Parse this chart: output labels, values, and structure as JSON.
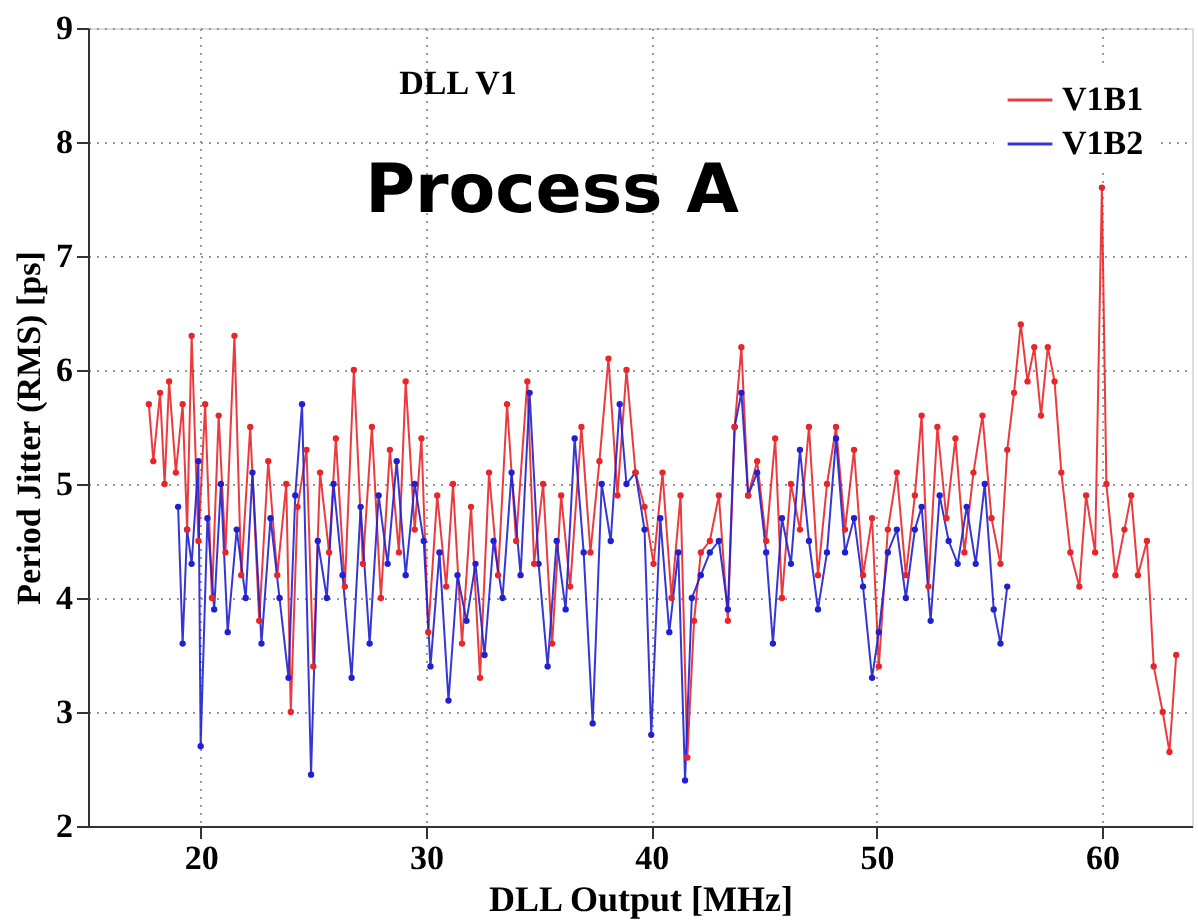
{
  "chart_data": {
    "type": "line",
    "title": "DLL V1",
    "annotations": [
      "Process A"
    ],
    "xlabel": "DLL Output [MHz]",
    "ylabel": "Period Jitter (RMS) [ps]",
    "xlim": [
      15,
      64
    ],
    "xticks": [
      20,
      30,
      40,
      50,
      60
    ],
    "ylim": [
      2,
      9
    ],
    "yticks": [
      2,
      3,
      4,
      5,
      6,
      7,
      8,
      9
    ],
    "grid": true,
    "legend": "top right",
    "marker": "circle",
    "line_style": "solid",
    "series": [
      {
        "name": "V1B1",
        "color": "#e8262a",
        "x": [
          17.7,
          17.9,
          18.2,
          18.4,
          18.6,
          18.9,
          19.2,
          19.4,
          19.6,
          19.9,
          20.2,
          20.5,
          20.8,
          21.1,
          21.5,
          21.8,
          22.2,
          22.6,
          23.0,
          23.4,
          23.8,
          24.0,
          24.3,
          24.7,
          25.0,
          25.3,
          25.7,
          26.0,
          26.4,
          26.8,
          27.2,
          27.6,
          28.0,
          28.4,
          28.8,
          29.1,
          29.5,
          29.8,
          30.1,
          30.5,
          30.9,
          31.2,
          31.6,
          32.0,
          32.4,
          32.8,
          33.2,
          33.6,
          34.0,
          34.5,
          34.8,
          35.2,
          35.6,
          36.0,
          36.4,
          36.9,
          37.3,
          37.7,
          38.1,
          38.5,
          38.9,
          39.3,
          39.7,
          40.1,
          40.5,
          40.9,
          41.3,
          41.6,
          41.9,
          42.2,
          42.6,
          43.0,
          43.4,
          43.7,
          44.0,
          44.3,
          44.7,
          45.1,
          45.5,
          45.8,
          46.2,
          46.6,
          47.0,
          47.4,
          47.8,
          48.2,
          48.6,
          49.0,
          49.4,
          49.8,
          50.1,
          50.5,
          50.9,
          51.3,
          51.7,
          52.0,
          52.3,
          52.7,
          53.1,
          53.5,
          53.9,
          54.3,
          54.7,
          55.1,
          55.5,
          55.8,
          56.1,
          56.4,
          56.7,
          57.0,
          57.3,
          57.6,
          57.9,
          58.2,
          58.6,
          59.0,
          59.3,
          59.7,
          60.0,
          60.2,
          60.6,
          61.0,
          61.3,
          61.6,
          62.0,
          62.3,
          62.7,
          63.0,
          63.3
        ],
        "values": [
          5.7,
          5.2,
          5.8,
          5.0,
          5.9,
          5.1,
          5.7,
          4.6,
          6.3,
          4.5,
          5.7,
          4.0,
          5.6,
          4.4,
          6.3,
          4.2,
          5.5,
          3.8,
          5.2,
          4.2,
          5.0,
          3.0,
          4.8,
          5.3,
          3.4,
          5.1,
          4.4,
          5.4,
          4.1,
          6.0,
          4.3,
          5.5,
          4.0,
          5.3,
          4.4,
          5.9,
          4.6,
          5.4,
          3.7,
          4.9,
          4.1,
          5.0,
          3.6,
          4.8,
          3.3,
          5.1,
          4.2,
          5.7,
          4.5,
          5.9,
          4.3,
          5.0,
          3.6,
          4.9,
          4.1,
          5.5,
          4.4,
          5.2,
          6.1,
          4.9,
          6.0,
          5.1,
          4.8,
          4.3,
          5.1,
          4.0,
          4.9,
          2.6,
          3.8,
          4.4,
          4.5,
          4.9,
          3.8,
          5.5,
          6.2,
          4.9,
          5.2,
          4.5,
          5.4,
          4.0,
          5.0,
          4.6,
          5.5,
          4.2,
          5.0,
          5.5,
          4.6,
          5.3,
          4.2,
          4.7,
          3.4,
          4.6,
          5.1,
          4.2,
          4.9,
          5.6,
          4.1,
          5.5,
          4.7,
          5.4,
          4.4,
          5.1,
          5.6,
          4.7,
          4.3,
          5.3,
          5.8,
          6.4,
          5.9,
          6.2,
          5.6,
          6.2,
          5.9,
          5.1,
          4.4,
          4.1,
          4.9,
          4.4,
          7.6,
          5.0,
          4.2,
          4.6,
          4.9,
          4.2,
          4.5,
          3.4,
          3.0,
          2.65,
          3.5
        ]
      },
      {
        "name": "V1B2",
        "color": "#2020d0",
        "x": [
          19.0,
          19.2,
          19.4,
          19.6,
          19.9,
          20.0,
          20.3,
          20.6,
          20.9,
          21.2,
          21.6,
          22.0,
          22.3,
          22.7,
          23.1,
          23.5,
          23.9,
          24.2,
          24.5,
          24.9,
          25.2,
          25.6,
          25.9,
          26.3,
          26.7,
          27.1,
          27.5,
          27.9,
          28.3,
          28.7,
          29.1,
          29.5,
          29.9,
          30.2,
          30.6,
          31.0,
          31.4,
          31.8,
          32.2,
          32.6,
          33.0,
          33.4,
          33.8,
          34.2,
          34.6,
          35.0,
          35.4,
          35.8,
          36.2,
          36.6,
          37.0,
          37.4,
          37.8,
          38.2,
          38.6,
          38.9,
          39.3,
          39.7,
          40.0,
          40.4,
          40.8,
          41.2,
          41.5,
          41.8,
          42.2,
          42.6,
          43.0,
          43.4,
          43.7,
          44.0,
          44.3,
          44.7,
          45.1,
          45.4,
          45.8,
          46.2,
          46.6,
          47.0,
          47.4,
          47.8,
          48.2,
          48.6,
          49.0,
          49.4,
          49.8,
          50.1,
          50.5,
          50.9,
          51.3,
          51.7,
          52.0,
          52.4,
          52.8,
          53.2,
          53.6,
          54.0,
          54.4,
          54.8,
          55.2,
          55.5,
          55.8
        ],
        "values": [
          4.8,
          3.6,
          4.6,
          4.3,
          5.2,
          2.7,
          4.7,
          3.9,
          5.0,
          3.7,
          4.6,
          4.0,
          5.1,
          3.6,
          4.7,
          4.0,
          3.3,
          4.9,
          5.7,
          2.45,
          4.5,
          4.0,
          5.0,
          4.2,
          3.3,
          4.8,
          3.6,
          4.9,
          4.3,
          5.2,
          4.2,
          5.0,
          4.5,
          3.4,
          4.4,
          3.1,
          4.2,
          3.8,
          4.3,
          3.5,
          4.5,
          4.0,
          5.1,
          4.2,
          5.8,
          4.3,
          3.4,
          4.5,
          3.9,
          5.4,
          4.4,
          2.9,
          5.0,
          4.5,
          5.7,
          5.0,
          5.1,
          4.6,
          2.8,
          4.7,
          3.7,
          4.4,
          2.4,
          4.0,
          4.2,
          4.4,
          4.5,
          3.9,
          5.5,
          5.8,
          4.9,
          5.1,
          4.4,
          3.6,
          4.7,
          4.3,
          5.3,
          4.5,
          3.9,
          4.4,
          5.4,
          4.4,
          4.7,
          4.1,
          3.3,
          3.7,
          4.4,
          4.6,
          4.0,
          4.6,
          4.8,
          3.8,
          4.9,
          4.5,
          4.3,
          4.8,
          4.3,
          5.0,
          3.9,
          3.6,
          4.1
        ]
      }
    ]
  }
}
